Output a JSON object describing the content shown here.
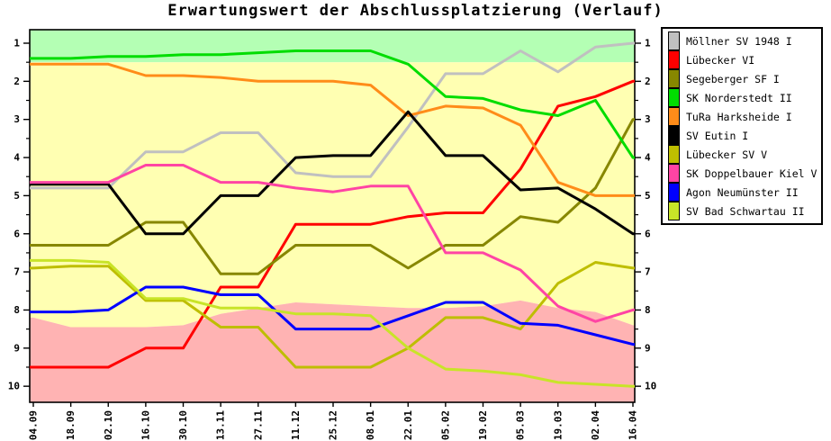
{
  "chart_data": {
    "type": "line",
    "title": "Erwartungswert der Abschlussplatzierung (Verlauf)",
    "x_labels": [
      "04.09",
      "18.09",
      "02.10",
      "16.10",
      "30.10",
      "13.11",
      "27.11",
      "11.12",
      "25.12",
      "08.01",
      "22.01",
      "05.02",
      "19.02",
      "05.03",
      "19.03",
      "02.04",
      "16.04"
    ],
    "y_axis": {
      "min": 1,
      "max": 10,
      "major_step": 1,
      "minor_step": 0.5,
      "inverted": true,
      "labels_on_both_sides": true
    },
    "grid": "off",
    "legend_position": "right",
    "zones": {
      "top_zone_color": "#b4ffb4",
      "middle_zone_color": "#ffffb2",
      "bottom_zone_color": "#ffb3b3",
      "top_zone_to_value": 1.5,
      "bottom_zone_boundary_values": [
        8.2,
        8.45,
        8.45,
        8.45,
        8.4,
        8.1,
        7.95,
        7.8,
        7.85,
        7.9,
        7.95,
        7.95,
        7.9,
        7.75,
        7.95,
        8.05,
        8.4
      ]
    },
    "series": [
      {
        "name": "Möllner SV 1948 I",
        "color": "#c0c0c0",
        "values": [
          4.8,
          4.8,
          4.8,
          3.85,
          3.85,
          3.35,
          3.35,
          4.4,
          4.5,
          4.5,
          3.2,
          1.8,
          1.8,
          1.2,
          1.75,
          1.1,
          1.0
        ]
      },
      {
        "name": "Lübecker VI",
        "color": "#ff0000",
        "values": [
          9.5,
          9.5,
          9.5,
          9.0,
          9.0,
          7.4,
          7.4,
          5.75,
          5.75,
          5.75,
          5.55,
          5.45,
          5.45,
          4.3,
          2.65,
          2.4,
          2.0
        ]
      },
      {
        "name": "Segeberger SF I",
        "color": "#878700",
        "values": [
          6.3,
          6.3,
          6.3,
          5.7,
          5.7,
          7.05,
          7.05,
          6.3,
          6.3,
          6.3,
          6.9,
          6.3,
          6.3,
          5.55,
          5.7,
          4.8,
          3.0
        ]
      },
      {
        "name": "SK Norderstedt II",
        "color": "#00dd00",
        "values": [
          1.4,
          1.4,
          1.35,
          1.35,
          1.3,
          1.3,
          1.25,
          1.2,
          1.2,
          1.2,
          1.55,
          2.4,
          2.45,
          2.75,
          2.9,
          2.5,
          4.0
        ]
      },
      {
        "name": "TuRa Harksheide I",
        "color": "#ff8c19",
        "values": [
          1.55,
          1.55,
          1.55,
          1.85,
          1.85,
          1.9,
          2.0,
          2.0,
          2.0,
          2.1,
          2.9,
          2.65,
          2.7,
          3.15,
          4.65,
          5.0,
          5.0
        ]
      },
      {
        "name": "SV Eutin I",
        "color": "#000000",
        "values": [
          4.7,
          4.7,
          4.7,
          6.0,
          6.0,
          5.0,
          5.0,
          4.0,
          3.95,
          3.95,
          2.8,
          3.95,
          3.95,
          4.85,
          4.8,
          5.35,
          6.0
        ]
      },
      {
        "name": "Lübecker SV V",
        "color": "#bebe00",
        "values": [
          6.9,
          6.85,
          6.85,
          7.75,
          7.75,
          8.45,
          8.45,
          9.5,
          9.5,
          9.5,
          9.0,
          8.2,
          8.2,
          8.5,
          7.3,
          6.75,
          6.9
        ]
      },
      {
        "name": "SK Doppelbauer Kiel V",
        "color": "#ff44a4",
        "values": [
          4.65,
          4.65,
          4.65,
          4.2,
          4.2,
          4.65,
          4.65,
          4.8,
          4.9,
          4.75,
          4.75,
          6.5,
          6.5,
          6.95,
          7.9,
          8.3,
          8.0
        ]
      },
      {
        "name": "Agon Neumünster II",
        "color": "#0000ff",
        "values": [
          8.05,
          8.05,
          8.0,
          7.4,
          7.4,
          7.6,
          7.6,
          8.5,
          8.5,
          8.5,
          8.15,
          7.8,
          7.8,
          8.35,
          8.4,
          8.65,
          8.9
        ]
      },
      {
        "name": "SV Bad Schwartau II",
        "color": "#c8e428",
        "values": [
          6.7,
          6.7,
          6.75,
          7.7,
          7.7,
          7.95,
          7.95,
          8.1,
          8.1,
          8.15,
          9.0,
          9.55,
          9.6,
          9.7,
          9.9,
          9.95,
          10.0
        ]
      }
    ]
  }
}
